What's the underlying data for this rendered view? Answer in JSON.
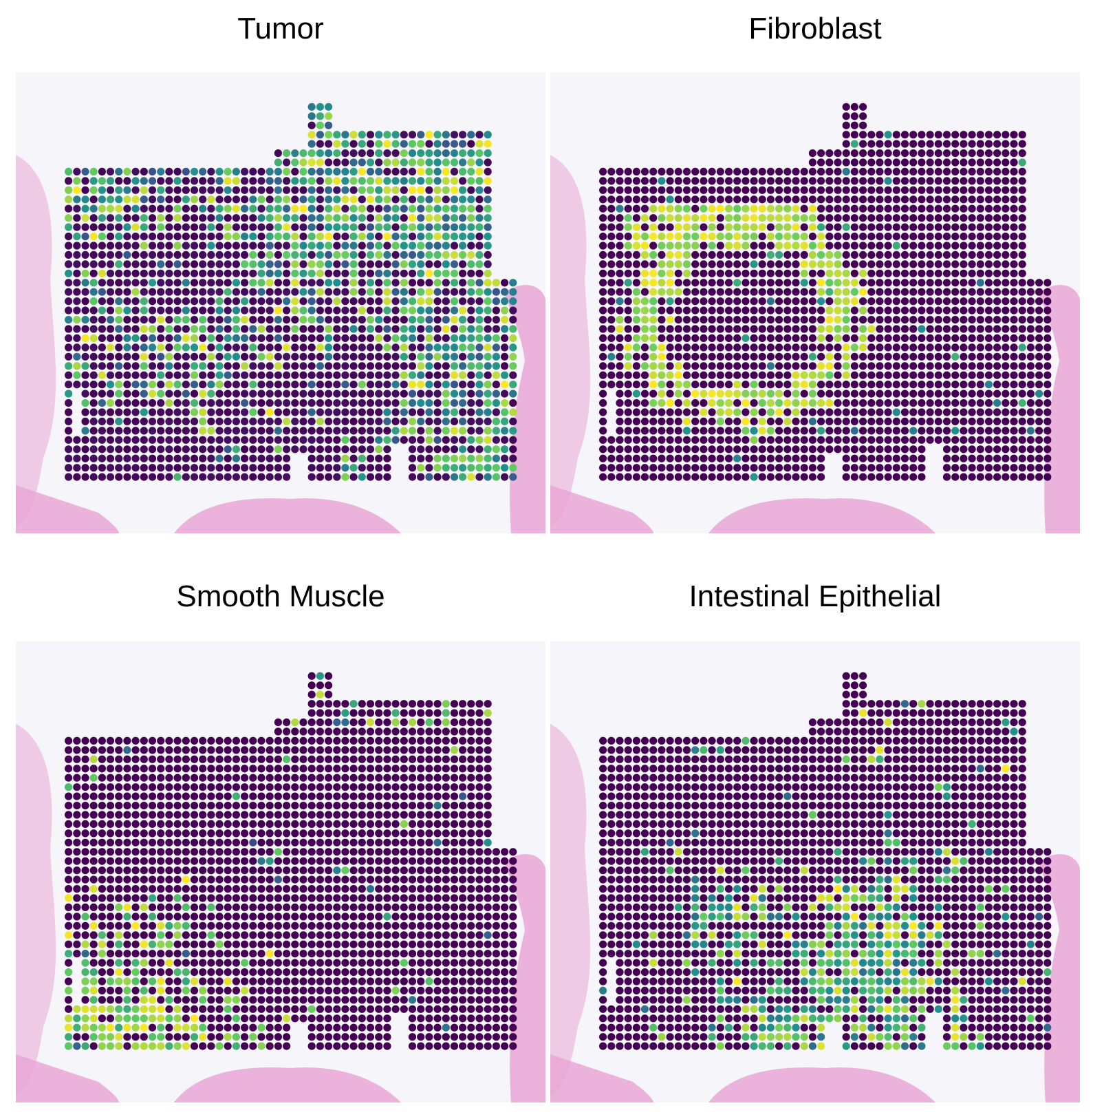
{
  "figure": {
    "colormap": "viridis",
    "colors": {
      "min": "#440154",
      "low": "#3b528b",
      "mid": "#21918c",
      "high": "#5ec962",
      "max": "#fde725",
      "tissue_pink": "#e9a6d6",
      "background": "#f6f5f9"
    }
  },
  "chart_data": [
    {
      "type": "scatter",
      "title": "Tumor",
      "grid": false,
      "legend": "none",
      "grid_cols": 58,
      "grid_rows": 46,
      "pattern": "tumor",
      "hotspots": [
        {
          "col": 0.65,
          "row": 0.05,
          "radius": 0.22,
          "value": 0.9
        },
        {
          "col": 0.78,
          "row": 0.3,
          "radius": 0.26,
          "value": 0.95
        },
        {
          "col": 0.88,
          "row": 0.7,
          "radius": 0.25,
          "value": 0.9
        },
        {
          "col": 0.15,
          "row": 0.18,
          "radius": 0.2,
          "value": 0.8
        },
        {
          "col": 0.25,
          "row": 0.62,
          "radius": 0.18,
          "value": 0.75
        },
        {
          "col": 0.55,
          "row": 0.4,
          "radius": 0.2,
          "value": 0.85
        }
      ],
      "cold_regions": [
        {
          "col": 0.3,
          "row": 0.48,
          "radius": 0.1
        },
        {
          "col": 0.65,
          "row": 0.78,
          "radius": 0.15
        },
        {
          "col": 0.18,
          "row": 0.9,
          "radius": 0.12
        }
      ]
    },
    {
      "type": "scatter",
      "title": "Fibroblast",
      "grid": false,
      "legend": "none",
      "grid_cols": 58,
      "grid_rows": 46,
      "pattern": "fibroblast",
      "ring": {
        "col": 0.35,
        "row": 0.58,
        "radius_col": 0.21,
        "radius_row": 0.22,
        "thickness": 0.05,
        "value": 1.0
      },
      "arc_top": {
        "col": 0.33,
        "row": 0.5,
        "radius_col": 0.25,
        "radius_row": 0.22
      }
    },
    {
      "type": "scatter",
      "title": "Smooth Muscle",
      "grid": false,
      "legend": "none",
      "grid_cols": 58,
      "grid_rows": 46,
      "pattern": "smooth_muscle",
      "hotspots": [
        {
          "col": 0.12,
          "row": 0.9,
          "radius": 0.14,
          "value": 1.0
        },
        {
          "col": 0.26,
          "row": 0.93,
          "radius": 0.1,
          "value": 0.9
        }
      ],
      "edge_value": 0.85
    },
    {
      "type": "scatter",
      "title": "Intestinal Epithelial",
      "grid": false,
      "legend": "none",
      "grid_cols": 58,
      "grid_rows": 46,
      "pattern": "epithelial",
      "hotspots": [
        {
          "col": 0.6,
          "row": 0.84,
          "radius": 0.13,
          "value": 1.0
        },
        {
          "col": 0.64,
          "row": 0.68,
          "radius": 0.11,
          "value": 0.9
        },
        {
          "col": 0.42,
          "row": 0.9,
          "radius": 0.1,
          "value": 0.75
        },
        {
          "col": 0.32,
          "row": 0.65,
          "radius": 0.07,
          "value": 0.8
        }
      ]
    }
  ]
}
